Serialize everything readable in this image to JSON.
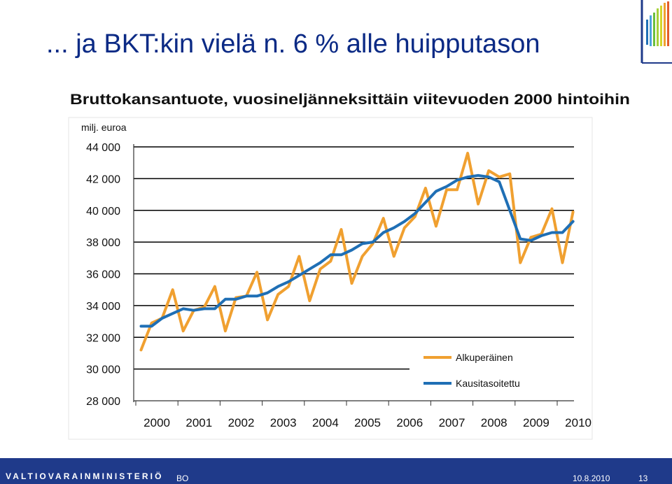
{
  "slide": {
    "title": "... ja BKT:kin vielä n. 6 % alle huipputason"
  },
  "footer": {
    "ministry": "VALTIOVARAINMINISTERIÖ",
    "code": "BO",
    "date": "10.8.2010",
    "page": "13"
  },
  "colors": {
    "title": "#0b2a85",
    "original": "#f0a030",
    "seasonal": "#1f6fb5",
    "footer": "#1f3a8a"
  },
  "chart_data": {
    "type": "line",
    "title": "Bruttokansantuote, vuosineljänneksittäin viitevuoden 2000 hintoihin",
    "ylabel": "milj. euroa",
    "xlabel": "",
    "ylim": [
      28000,
      44000
    ],
    "yticks": [
      "28 000",
      "30 000",
      "32 000",
      "34 000",
      "36 000",
      "38 000",
      "40 000",
      "42 000",
      "44 000"
    ],
    "ytick_values": [
      28000,
      30000,
      32000,
      34000,
      36000,
      38000,
      40000,
      42000,
      44000
    ],
    "xticks": [
      "2000",
      "2001",
      "2002",
      "2003",
      "2004",
      "2005",
      "2006",
      "2007",
      "2008",
      "2009",
      "2010"
    ],
    "quarters_start": "2000Q1",
    "legend_position": "bottom-right",
    "grid": "horizontal-major",
    "series": [
      {
        "name": "Alkuperäinen",
        "color": "#f0a030",
        "values": [
          31200,
          32900,
          33200,
          35000,
          32400,
          33700,
          33900,
          35200,
          32400,
          34500,
          34600,
          36100,
          33100,
          34700,
          35200,
          37100,
          34300,
          36300,
          36800,
          38800,
          35400,
          37100,
          37900,
          39500,
          37100,
          38900,
          39600,
          41400,
          39000,
          41300,
          41300,
          43600,
          40400,
          42500,
          42100,
          42300,
          36700,
          38300,
          38500,
          40100,
          36700,
          39900
        ]
      },
      {
        "name": "Kausitasoitettu",
        "color": "#1f6fb5",
        "values": [
          32700,
          32700,
          33200,
          33500,
          33800,
          33700,
          33800,
          33800,
          34400,
          34400,
          34600,
          34600,
          34800,
          35200,
          35500,
          35900,
          36300,
          36700,
          37200,
          37200,
          37500,
          37900,
          38000,
          38600,
          38900,
          39300,
          39800,
          40500,
          41200,
          41500,
          41900,
          42100,
          42200,
          42100,
          41800,
          40000,
          38200,
          38100,
          38400,
          38600,
          38600,
          39300
        ]
      }
    ]
  }
}
